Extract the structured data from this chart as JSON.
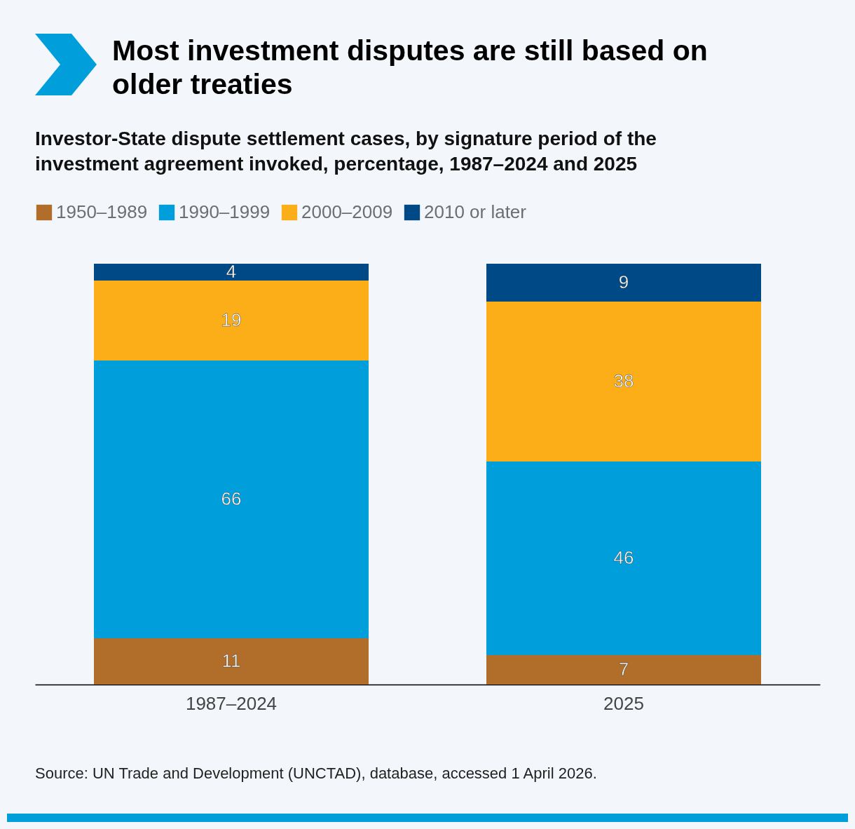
{
  "chart_data": {
    "type": "bar",
    "stacked": true,
    "title": "Most investment disputes are still based on older treaties",
    "subtitle": "Investor-State dispute settlement cases, by signature period of the investment agreement invoked, percentage, 1987–2024 and 2025",
    "categories": [
      "1987–2024",
      "2025"
    ],
    "series": [
      {
        "name": "1950–1989",
        "color": "#b06e2a",
        "values": [
          11,
          7
        ]
      },
      {
        "name": "1990–1999",
        "color": "#009edb",
        "values": [
          66,
          46
        ]
      },
      {
        "name": "2000–2009",
        "color": "#fbae17",
        "values": [
          19,
          38
        ]
      },
      {
        "name": "2010 or later",
        "color": "#004987",
        "values": [
          4,
          9
        ]
      }
    ],
    "data_labels": true,
    "legend": "top left",
    "annotations": [
      "Source: UN Trade and Development (UNCTAD), database, accessed 1 April 2026."
    ]
  }
}
